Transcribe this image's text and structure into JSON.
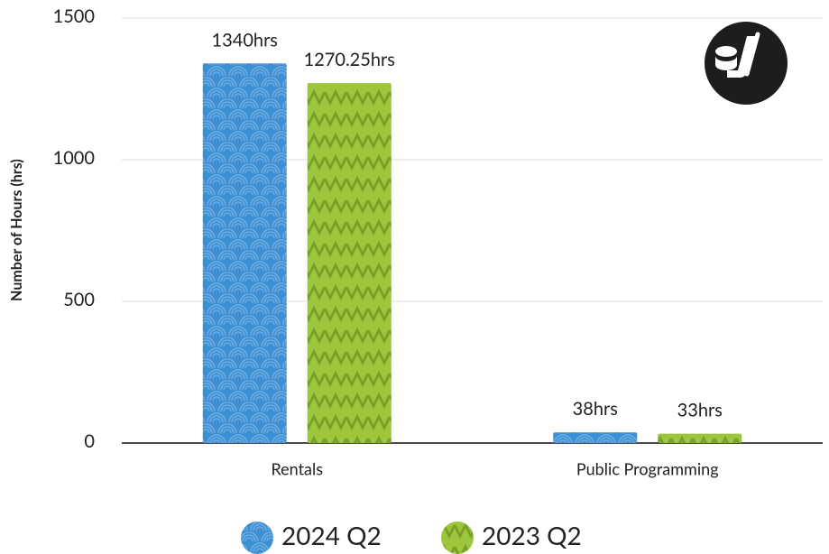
{
  "chart_data": {
    "type": "bar",
    "y_label": "Number of Hours (hrs)",
    "categories": [
      "Rentals",
      "Public Programming"
    ],
    "series": [
      {
        "name": "2024 Q2",
        "color": "#3d8fd4",
        "values": [
          1340,
          38
        ],
        "value_labels": [
          "1340hrs",
          "38hrs"
        ]
      },
      {
        "name": "2023 Q2",
        "color": "#9dc63c",
        "values": [
          1270.25,
          33
        ],
        "value_labels": [
          "1270.25hrs",
          "33hrs"
        ]
      }
    ],
    "ylim": [
      0,
      1500
    ],
    "yticks": [
      0,
      500,
      1000,
      1500
    ],
    "grid": true,
    "legend": "bottom"
  }
}
